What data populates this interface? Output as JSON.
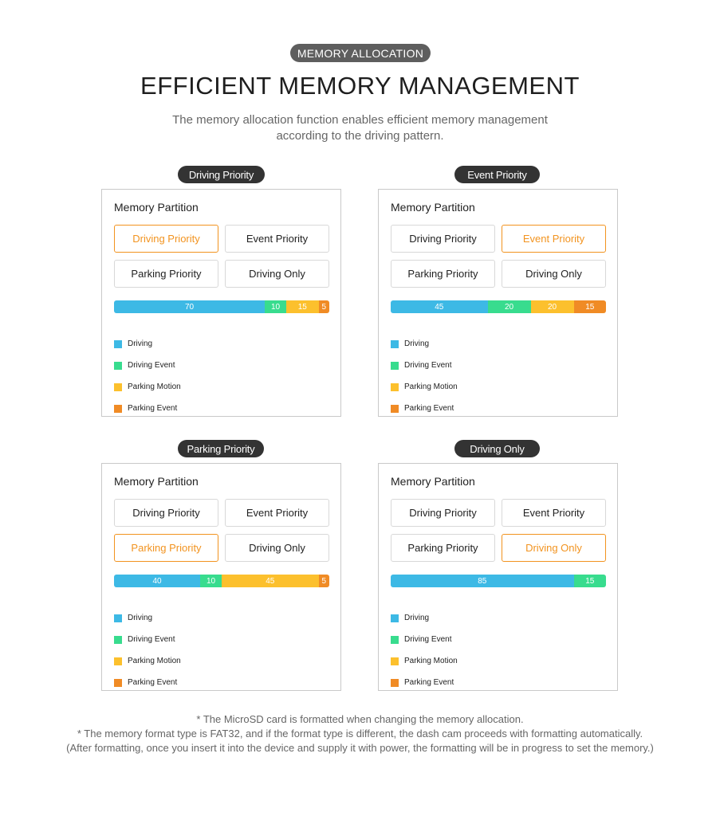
{
  "header": {
    "badge": "MEMORY ALLOCATION",
    "title": "EFFICIENT MEMORY MANAGEMENT",
    "subtitle_line1": "The memory allocation function enables efficient memory management",
    "subtitle_line2": "according to the driving pattern."
  },
  "colors": {
    "driving": "#3db9e5",
    "driving_event": "#38dc8e",
    "parking_motion": "#fcc02d",
    "parking_event": "#f08b25",
    "active_option": "#f2931f"
  },
  "legend_labels": {
    "driving": "Driving",
    "driving_event": "Driving Event",
    "parking_motion": "Parking Motion",
    "parking_event": "Parking Event"
  },
  "option_labels": [
    "Driving Priority",
    "Event Priority",
    "Parking Priority",
    "Driving Only"
  ],
  "card_title": "Memory Partition",
  "modes": [
    {
      "name": "Driving Priority",
      "selected_option": 0,
      "allocation": {
        "driving": 70,
        "driving_event": 10,
        "parking_motion": 15,
        "parking_event": 5
      }
    },
    {
      "name": "Event Priority",
      "selected_option": 1,
      "allocation": {
        "driving": 45,
        "driving_event": 20,
        "parking_motion": 20,
        "parking_event": 15
      }
    },
    {
      "name": "Parking Priority",
      "selected_option": 2,
      "allocation": {
        "driving": 40,
        "driving_event": 10,
        "parking_motion": 45,
        "parking_event": 5
      }
    },
    {
      "name": "Driving Only",
      "selected_option": 3,
      "allocation": {
        "driving": 85,
        "driving_event": 15
      }
    }
  ],
  "footer": {
    "line1": "* The MicroSD card is formatted when changing the memory allocation.",
    "line2": "* The memory format type is FAT32, and if the format type is different, the dash cam proceeds with formatting automatically.",
    "line3": "(After formatting, once you insert it into the device and supply it with power, the formatting will be in progress to set the memory.)"
  }
}
